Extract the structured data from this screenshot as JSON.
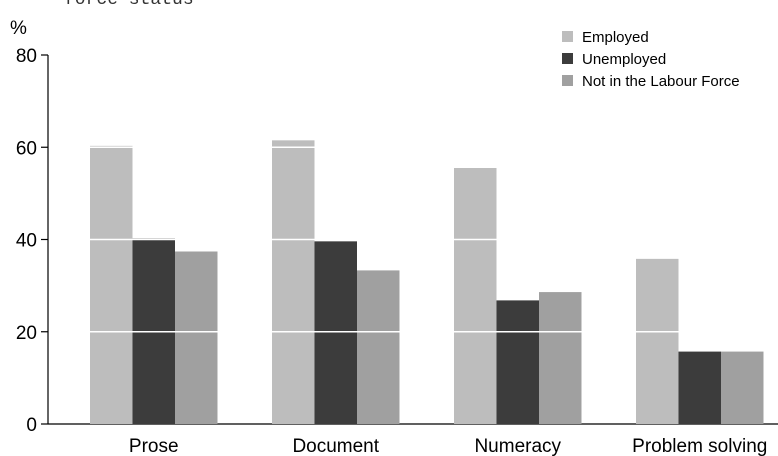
{
  "caption_fragment": "force status",
  "chart_data": {
    "type": "bar",
    "title": "",
    "xlabel": "",
    "ylabel": "%",
    "ylim": [
      0,
      80
    ],
    "yticks": [
      0,
      20,
      40,
      60,
      80
    ],
    "categories": [
      "Prose",
      "Document",
      "Numeracy",
      "Problem solving"
    ],
    "series": [
      {
        "name": "Employed",
        "color": "#bdbdbd",
        "values": [
          60.3,
          61.5,
          55.5,
          35.8
        ]
      },
      {
        "name": "Unemployed",
        "color": "#3c3c3c",
        "values": [
          40.2,
          39.6,
          26.8,
          15.7
        ]
      },
      {
        "name": "Not in the Labour Force",
        "color": "#a0a0a0",
        "values": [
          37.4,
          33.3,
          28.6,
          15.7
        ]
      }
    ],
    "grid": "white lines drawn through bars",
    "legend_position": "top-right"
  }
}
